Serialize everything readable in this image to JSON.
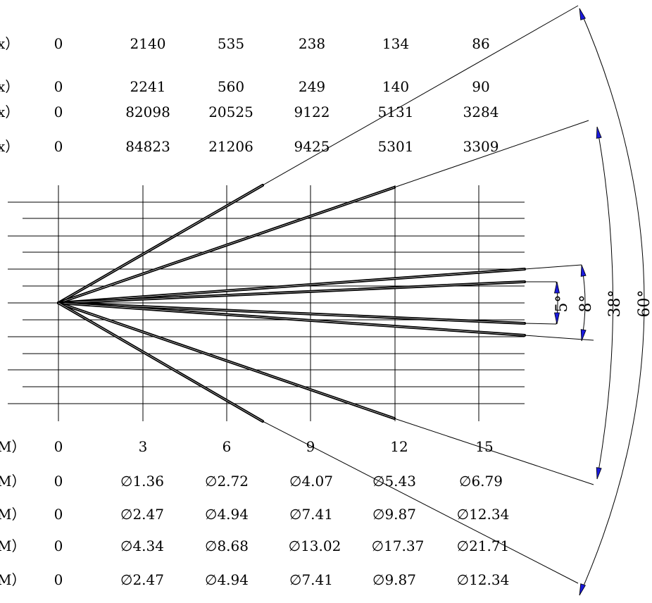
{
  "illuminance_rows": [
    {
      "unit_fragment": "x）",
      "values": [
        "0",
        "2140",
        "535",
        "238",
        "134",
        "86"
      ]
    },
    {
      "unit_fragment": "x）",
      "values": [
        "0",
        "2241",
        "560",
        "249",
        "140",
        "90"
      ]
    },
    {
      "unit_fragment": "x）",
      "values": [
        "0",
        "82098",
        "20525",
        "9122",
        "5131",
        "3284"
      ]
    },
    {
      "unit_fragment": "x）",
      "values": [
        "0",
        "84823",
        "21206",
        "9425",
        "5301",
        "3309"
      ]
    }
  ],
  "distance_row": {
    "unit_fragment": "M）",
    "values": [
      "0",
      "3",
      "6",
      "9",
      "12",
      "15"
    ]
  },
  "diameter_rows": [
    {
      "unit_fragment": "M）",
      "values": [
        "0",
        "∅1.36",
        "∅2.72",
        "∅4.07",
        "∅5.43",
        "∅6.79"
      ]
    },
    {
      "unit_fragment": "M）",
      "values": [
        "0",
        "∅2.47",
        "∅4.94",
        "∅7.41",
        "∅9.87",
        "∅12.34"
      ]
    },
    {
      "unit_fragment": "M）",
      "values": [
        "0",
        "∅4.34",
        "∅8.68",
        "∅13.02",
        "∅17.37",
        "∅21.71"
      ]
    },
    {
      "unit_fragment": "M）",
      "values": [
        "0",
        "∅2.47",
        "∅4.94",
        "∅7.41",
        "∅9.87",
        "∅12.34"
      ]
    }
  ],
  "beam_angles": [
    "5°",
    "8°",
    "38°",
    "60°"
  ],
  "colors": {
    "line": "#000000",
    "arrow": "#1a1adc",
    "background": "#ffffff"
  }
}
